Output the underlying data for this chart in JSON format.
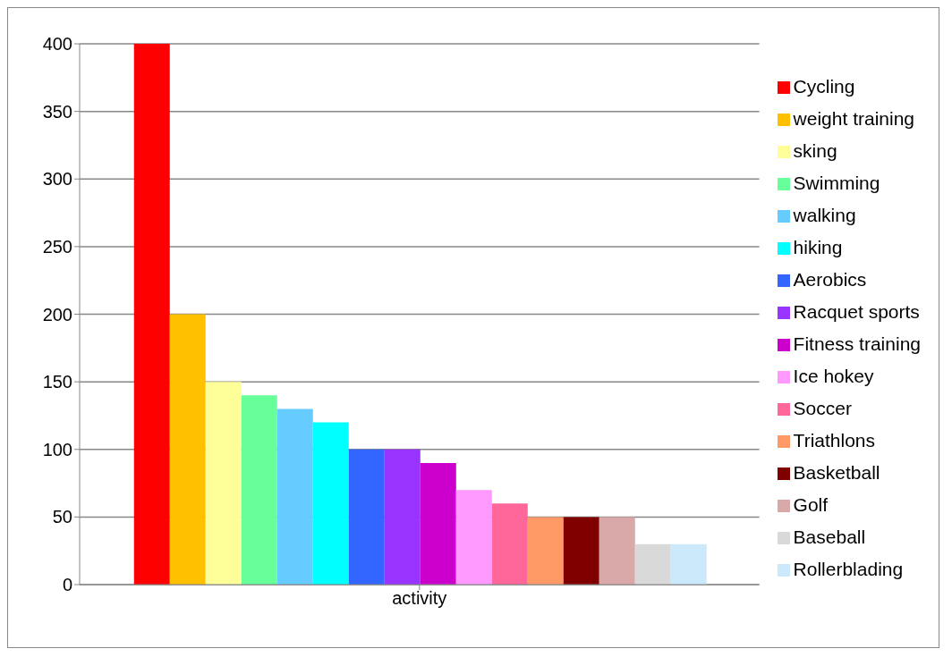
{
  "chart_data": {
    "type": "bar",
    "categories": [
      "activity"
    ],
    "series": [
      {
        "name": "Cycling",
        "color": "#ff0000",
        "values": [
          400
        ]
      },
      {
        "name": "weight training",
        "color": "#ffc000",
        "values": [
          200
        ]
      },
      {
        "name": "sking",
        "color": "#ffff99",
        "values": [
          150
        ]
      },
      {
        "name": "Swimming",
        "color": "#66ff99",
        "values": [
          140
        ]
      },
      {
        "name": "walking",
        "color": "#66ccff",
        "values": [
          130
        ]
      },
      {
        "name": "hiking",
        "color": "#00ffff",
        "values": [
          120
        ]
      },
      {
        "name": "Aerobics",
        "color": "#3366ff",
        "values": [
          100
        ]
      },
      {
        "name": "Racquet sports",
        "color": "#9933ff",
        "values": [
          100
        ]
      },
      {
        "name": "Fitness training",
        "color": "#cc00cc",
        "values": [
          90
        ]
      },
      {
        "name": "Ice hokey",
        "color": "#ff99ff",
        "values": [
          70
        ]
      },
      {
        "name": "Soccer",
        "color": "#ff6699",
        "values": [
          60
        ]
      },
      {
        "name": "Triathlons",
        "color": "#ff9966",
        "values": [
          50
        ]
      },
      {
        "name": "Basketball",
        "color": "#800000",
        "values": [
          50
        ]
      },
      {
        "name": "Golf",
        "color": "#d9a9a9",
        "values": [
          50
        ]
      },
      {
        "name": "Baseball",
        "color": "#d9d9d9",
        "values": [
          30
        ]
      },
      {
        "name": "Rollerblading",
        "color": "#cce9fb",
        "values": [
          30
        ]
      }
    ],
    "ylim": [
      0,
      400
    ],
    "yticks": [
      0,
      50,
      100,
      150,
      200,
      250,
      300,
      350,
      400
    ],
    "grid": "y",
    "legend": "right"
  }
}
